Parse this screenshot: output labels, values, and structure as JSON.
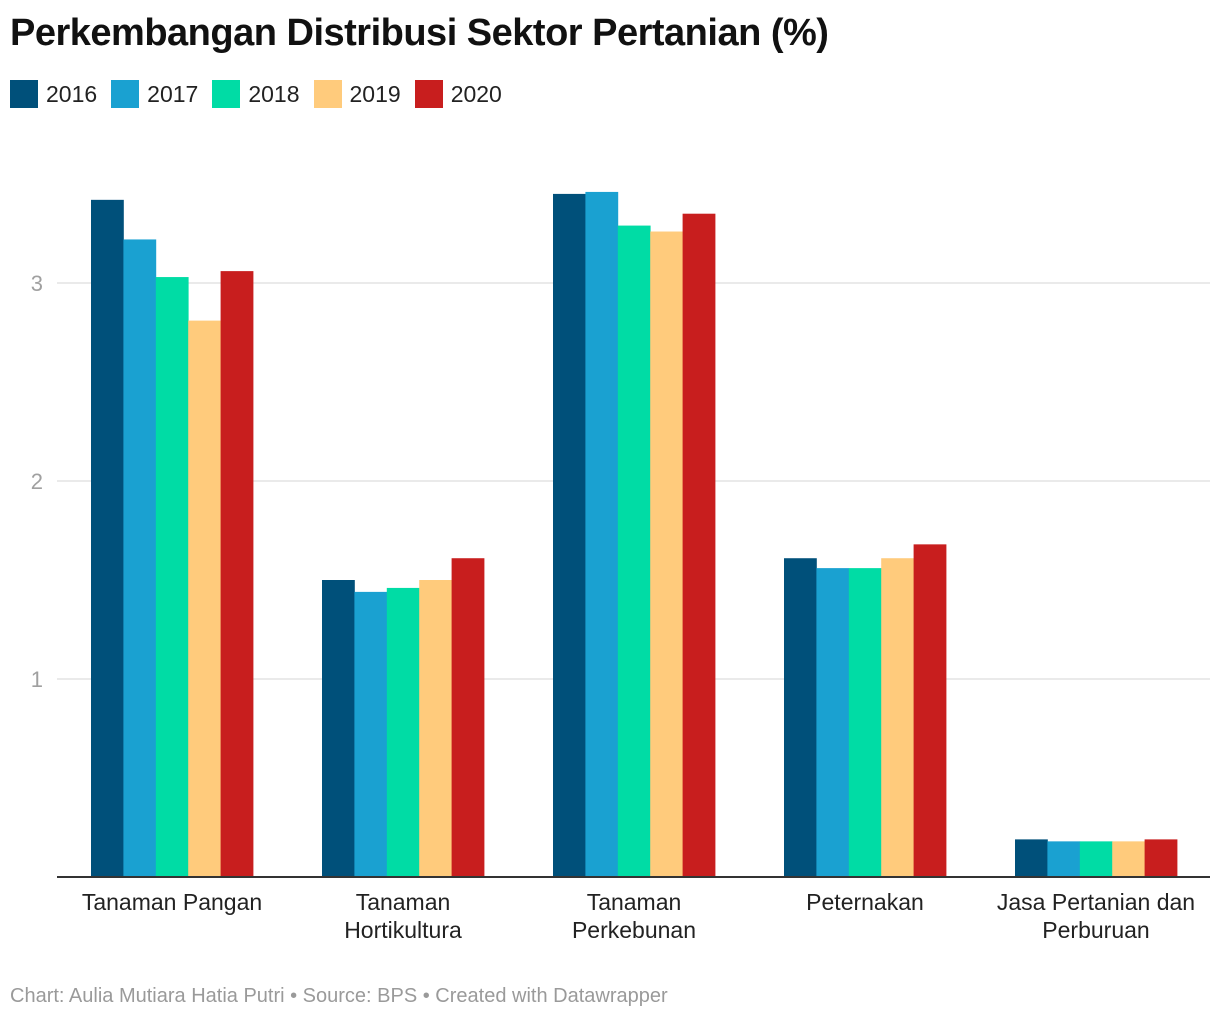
{
  "title": "Perkembangan Distribusi Sektor Pertanian (%)",
  "footer": "Chart: Aulia Mutiara Hatia Putri • Source: BPS • Created with Datawrapper",
  "chart_data": {
    "type": "bar",
    "title": "Perkembangan Distribusi Sektor Pertanian (%)",
    "categories": [
      [
        "Tanaman Pangan"
      ],
      [
        "Tanaman",
        "Hortikultura"
      ],
      [
        "Tanaman",
        "Perkebunan"
      ],
      [
        "Peternakan"
      ],
      [
        "Jasa Pertanian dan",
        "Perburuan"
      ]
    ],
    "series": [
      {
        "name": "2016",
        "color": "#00507a",
        "values": [
          3.42,
          1.5,
          3.45,
          1.61,
          0.19
        ]
      },
      {
        "name": "2017",
        "color": "#1aa1d1",
        "values": [
          3.22,
          1.44,
          3.46,
          1.56,
          0.18
        ]
      },
      {
        "name": "2018",
        "color": "#00dca5",
        "values": [
          3.03,
          1.46,
          3.29,
          1.56,
          0.18
        ]
      },
      {
        "name": "2019",
        "color": "#ffcb7c",
        "values": [
          2.81,
          1.5,
          3.26,
          1.61,
          0.18
        ]
      },
      {
        "name": "2020",
        "color": "#c81e1e",
        "values": [
          3.06,
          1.61,
          3.35,
          1.68,
          0.19
        ]
      }
    ],
    "yticks": [
      1,
      2,
      3
    ],
    "ylim": [
      0,
      3.6
    ],
    "xlabel": "",
    "ylabel": "",
    "grid": true,
    "legend_position": "top-left"
  }
}
